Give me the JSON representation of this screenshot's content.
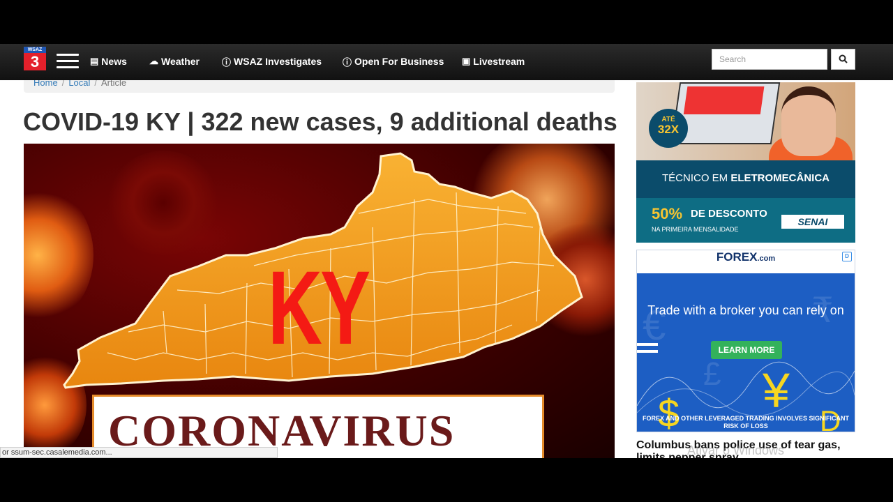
{
  "header": {
    "logo_top": "WSAZ",
    "logo_number": "3",
    "nav": [
      {
        "label": "News",
        "icon": "newspaper-icon"
      },
      {
        "label": "Weather",
        "icon": "cloud-icon"
      },
      {
        "label": "WSAZ Investigates",
        "icon": "info-icon"
      },
      {
        "label": "Open For Business",
        "icon": "info-icon"
      },
      {
        "label": "Livestream",
        "icon": "video-camera-icon"
      }
    ],
    "search_placeholder": "Search",
    "search_icon": "search-icon"
  },
  "breadcrumb": {
    "items": [
      "Home",
      "Local",
      "Article"
    ]
  },
  "article": {
    "headline": "COVID-19 KY | 322 new cases, 9 additional deaths",
    "image_ky_text": "KY",
    "image_banner_text": "CORONAVIRUS"
  },
  "ad1": {
    "badge_top": "ATÉ",
    "badge_big": "32X",
    "course_prefix": "TÉCNICO EM",
    "course_name": "ELETROMECÂNICA",
    "percent": "50%",
    "discount": "DE DESCONTO",
    "sub": "NA PRIMEIRA MENSALIDADE",
    "brand": "SENAI"
  },
  "ad2": {
    "brand": "FOREX",
    "brand_suffix": ".com",
    "tagline": "Trade with a broker you can rely on",
    "button": "LEARN MORE",
    "disclaimer": "FOREX AND OTHER LEVERAGED TRADING INVOLVES SIGNIFICANT RISK OF LOSS",
    "adchoices": "D"
  },
  "sidebar_headline": "Columbus bans police use of tear gas, limits pepper spray",
  "status_bar": "or ssum-sec.casalemedia.com...",
  "watermark": "Ativar o Windows",
  "colors": {
    "nav_bg": "#1a1a1a",
    "logo_red": "#e4202b",
    "logo_blue": "#1f57b5",
    "forex_blue": "#1d5ec3",
    "learn_green": "#33b25b",
    "senai_teal": "#0b4c6b",
    "ky_red": "#f41a14"
  }
}
